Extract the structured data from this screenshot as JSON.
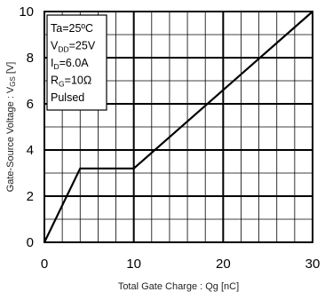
{
  "chart_data": {
    "type": "line",
    "xlabel": "Total Gate Charge : Qg  [nC]",
    "ylabel": "Gate-Source Voltage : V",
    "ylabel_sub": "GS",
    "ylabel_unit": " [V]",
    "xlim": [
      0,
      30
    ],
    "ylim": [
      0,
      10
    ],
    "x_ticks": [
      0,
      10,
      20,
      30
    ],
    "y_ticks": [
      0,
      2,
      4,
      6,
      8,
      10
    ],
    "grid": true,
    "series": [
      {
        "x": [
          0,
          4,
          10,
          30
        ],
        "y": [
          0,
          3.2,
          3.2,
          10
        ]
      }
    ],
    "conditions": [
      {
        "main": "Ta=25ºC",
        "sub": "",
        "rest": ""
      },
      {
        "main": "V",
        "sub": "DD",
        "rest": "=25V"
      },
      {
        "main": "I",
        "sub": "D",
        "rest": "=6.0A"
      },
      {
        "main": "R",
        "sub": "G",
        "rest": "=10Ω"
      },
      {
        "main": "Pulsed",
        "sub": "",
        "rest": ""
      }
    ]
  }
}
